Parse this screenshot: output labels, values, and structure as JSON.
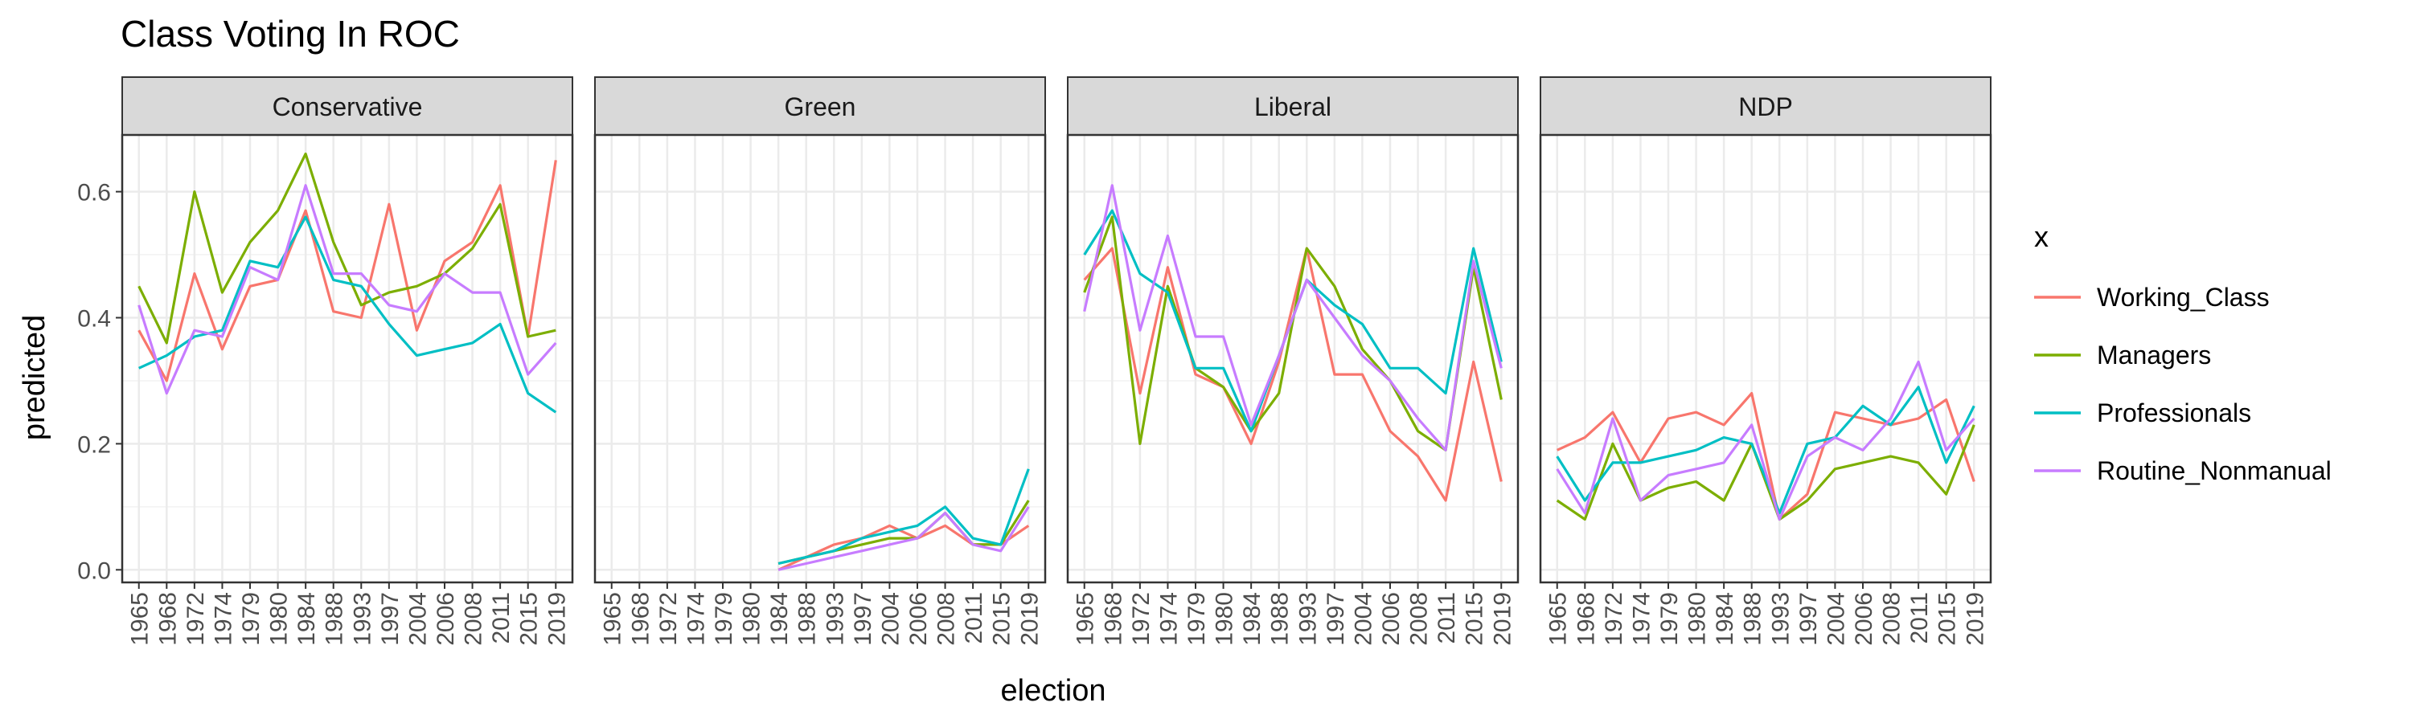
{
  "chart_data": {
    "type": "line",
    "title": "Class Voting In ROC",
    "xlabel": "election",
    "ylabel": "predicted",
    "legend_title": "x",
    "legend_position": "right",
    "grid": true,
    "ylim": [
      -0.02,
      0.69
    ],
    "yticks": [
      "0.0",
      "0.2",
      "0.4",
      "0.6"
    ],
    "categories": [
      "1965",
      "1968",
      "1972",
      "1974",
      "1979",
      "1980",
      "1984",
      "1988",
      "1993",
      "1997",
      "2004",
      "2006",
      "2008",
      "2011",
      "2015",
      "2019"
    ],
    "series_names": [
      "Working_Class",
      "Managers",
      "Professionals",
      "Routine_Nonmanual"
    ],
    "colors": {
      "Working_Class": "#F8766D",
      "Managers": "#7CAE00",
      "Professionals": "#00BFC4",
      "Routine_Nonmanual": "#C77CFF"
    },
    "panels": [
      {
        "name": "Conservative",
        "series": [
          {
            "name": "Working_Class",
            "values": [
              0.38,
              0.3,
              0.47,
              0.35,
              0.45,
              0.46,
              0.57,
              0.41,
              0.4,
              0.58,
              0.38,
              0.49,
              0.52,
              0.61,
              0.37,
              0.65
            ]
          },
          {
            "name": "Managers",
            "values": [
              0.45,
              0.36,
              0.6,
              0.44,
              0.52,
              0.57,
              0.66,
              0.52,
              0.42,
              0.44,
              0.45,
              0.47,
              0.51,
              0.58,
              0.37,
              0.38
            ]
          },
          {
            "name": "Professionals",
            "values": [
              0.32,
              0.34,
              0.37,
              0.38,
              0.49,
              0.48,
              0.56,
              0.46,
              0.45,
              0.39,
              0.34,
              0.35,
              0.36,
              0.39,
              0.28,
              0.25
            ]
          },
          {
            "name": "Routine_Nonmanual",
            "values": [
              0.42,
              0.28,
              0.38,
              0.37,
              0.48,
              0.46,
              0.61,
              0.47,
              0.47,
              0.42,
              0.41,
              0.47,
              0.44,
              0.44,
              0.31,
              0.36
            ]
          }
        ]
      },
      {
        "name": "Green",
        "series": [
          {
            "name": "Working_Class",
            "values": [
              null,
              null,
              null,
              null,
              null,
              null,
              0.0,
              0.02,
              0.04,
              0.05,
              0.07,
              0.05,
              0.07,
              0.04,
              0.04,
              0.07
            ]
          },
          {
            "name": "Managers",
            "values": [
              null,
              null,
              null,
              null,
              null,
              null,
              0.01,
              0.02,
              0.03,
              0.04,
              0.05,
              0.05,
              0.09,
              0.04,
              0.04,
              0.11
            ]
          },
          {
            "name": "Professionals",
            "values": [
              null,
              null,
              null,
              null,
              null,
              null,
              0.01,
              0.02,
              0.03,
              0.05,
              0.06,
              0.07,
              0.1,
              0.05,
              0.04,
              0.16
            ]
          },
          {
            "name": "Routine_Nonmanual",
            "values": [
              null,
              null,
              null,
              null,
              null,
              null,
              0.0,
              0.01,
              0.02,
              0.03,
              0.04,
              0.05,
              0.09,
              0.04,
              0.03,
              0.1
            ]
          }
        ]
      },
      {
        "name": "Liberal",
        "series": [
          {
            "name": "Working_Class",
            "values": [
              0.46,
              0.51,
              0.28,
              0.48,
              0.31,
              0.29,
              0.2,
              0.33,
              0.51,
              0.31,
              0.31,
              0.22,
              0.18,
              0.11,
              0.33,
              0.14
            ]
          },
          {
            "name": "Managers",
            "values": [
              0.44,
              0.56,
              0.2,
              0.45,
              0.32,
              0.29,
              0.22,
              0.28,
              0.51,
              0.45,
              0.35,
              0.3,
              0.22,
              0.19,
              0.48,
              0.27
            ]
          },
          {
            "name": "Professionals",
            "values": [
              0.5,
              0.57,
              0.47,
              0.44,
              0.32,
              0.32,
              0.22,
              0.34,
              0.46,
              0.42,
              0.39,
              0.32,
              0.32,
              0.28,
              0.51,
              0.33
            ]
          },
          {
            "name": "Routine_Nonmanual",
            "values": [
              0.41,
              0.61,
              0.38,
              0.53,
              0.37,
              0.37,
              0.23,
              0.34,
              0.46,
              0.4,
              0.34,
              0.3,
              0.24,
              0.19,
              0.49,
              0.32
            ]
          }
        ]
      },
      {
        "name": "NDP",
        "series": [
          {
            "name": "Working_Class",
            "values": [
              0.19,
              0.21,
              0.25,
              0.17,
              0.24,
              0.25,
              0.23,
              0.28,
              0.08,
              0.12,
              0.25,
              0.24,
              0.23,
              0.24,
              0.27,
              0.14
            ]
          },
          {
            "name": "Managers",
            "values": [
              0.11,
              0.08,
              0.2,
              0.11,
              0.13,
              0.14,
              0.11,
              0.2,
              0.08,
              0.11,
              0.16,
              0.17,
              0.18,
              0.17,
              0.12,
              0.23
            ]
          },
          {
            "name": "Professionals",
            "values": [
              0.18,
              0.11,
              0.17,
              0.17,
              0.18,
              0.19,
              0.21,
              0.2,
              0.09,
              0.2,
              0.21,
              0.26,
              0.23,
              0.29,
              0.17,
              0.26
            ]
          },
          {
            "name": "Routine_Nonmanual",
            "values": [
              0.16,
              0.09,
              0.24,
              0.11,
              0.15,
              0.16,
              0.17,
              0.23,
              0.08,
              0.18,
              0.21,
              0.19,
              0.24,
              0.33,
              0.19,
              0.24
            ]
          }
        ]
      }
    ]
  }
}
